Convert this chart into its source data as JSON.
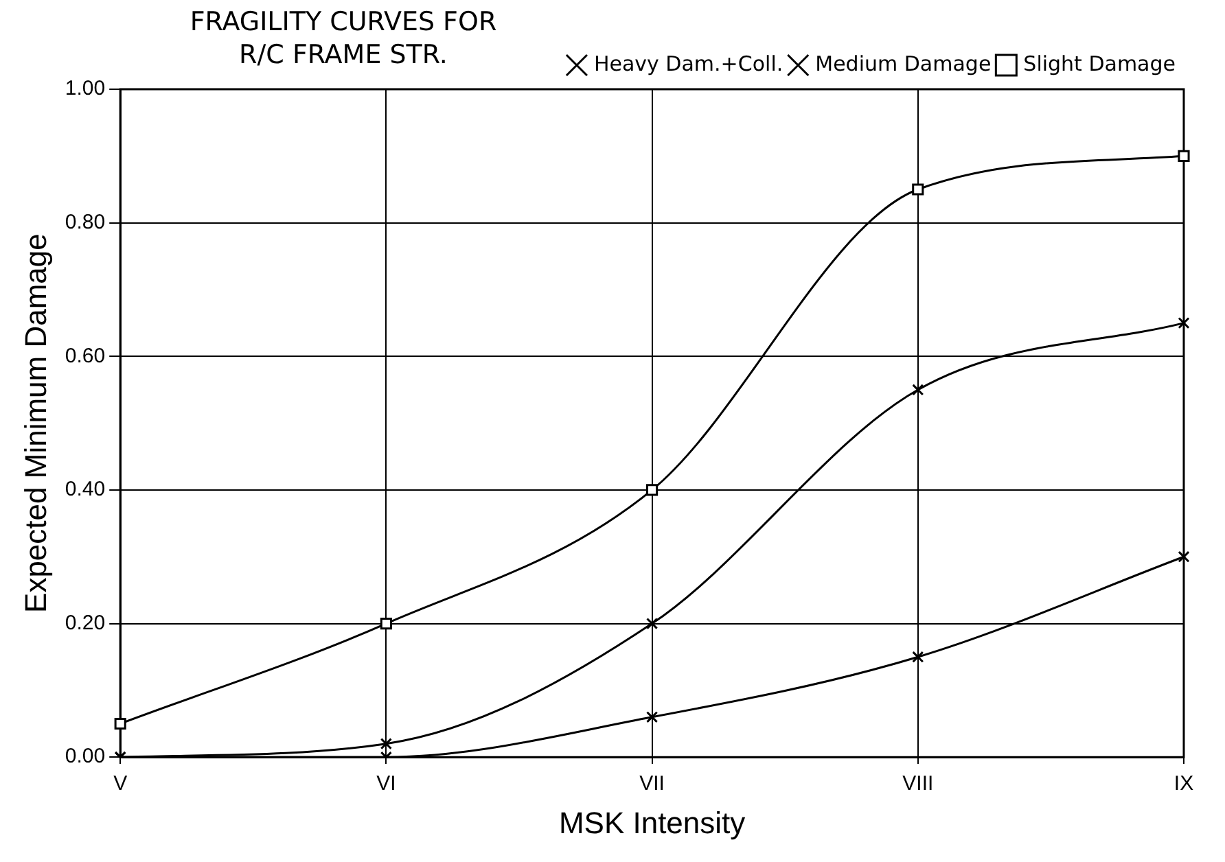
{
  "chart_data": {
    "type": "line",
    "title": "FRAGILITY CURVES FOR\nR/C FRAME STR.",
    "xlabel": "MSK Intensity",
    "ylabel": "Expected Minimum Damage",
    "categories": [
      "V",
      "VI",
      "VII",
      "VIII",
      "IX"
    ],
    "series": [
      {
        "name": "Heavy Dam.+Coll.",
        "color": "#000000",
        "marker": "cross",
        "values": [
          0,
          0,
          0.06,
          0.15,
          0.3
        ]
      },
      {
        "name": "Medium Damage",
        "color": "#000000",
        "marker": "cross",
        "values": [
          0,
          0.02,
          0.2,
          0.55,
          0.65
        ]
      },
      {
        "name": "Slight Damage",
        "color": "#000000",
        "marker": "square",
        "values": [
          0.05,
          0.2,
          0.4,
          0.85,
          0.9
        ]
      }
    ],
    "ylim": [
      0,
      1
    ],
    "yticks": [
      {
        "value": 0,
        "label": "0.00"
      },
      {
        "value": 0.2,
        "label": "0.20"
      },
      {
        "value": 0.4,
        "label": "0.40"
      },
      {
        "value": 0.6,
        "label": "0.60"
      },
      {
        "value": 0.8,
        "label": "0.80"
      },
      {
        "value": 1,
        "label": "1.00"
      }
    ],
    "grid": true,
    "legend": "top right",
    "line_style": "solid"
  }
}
